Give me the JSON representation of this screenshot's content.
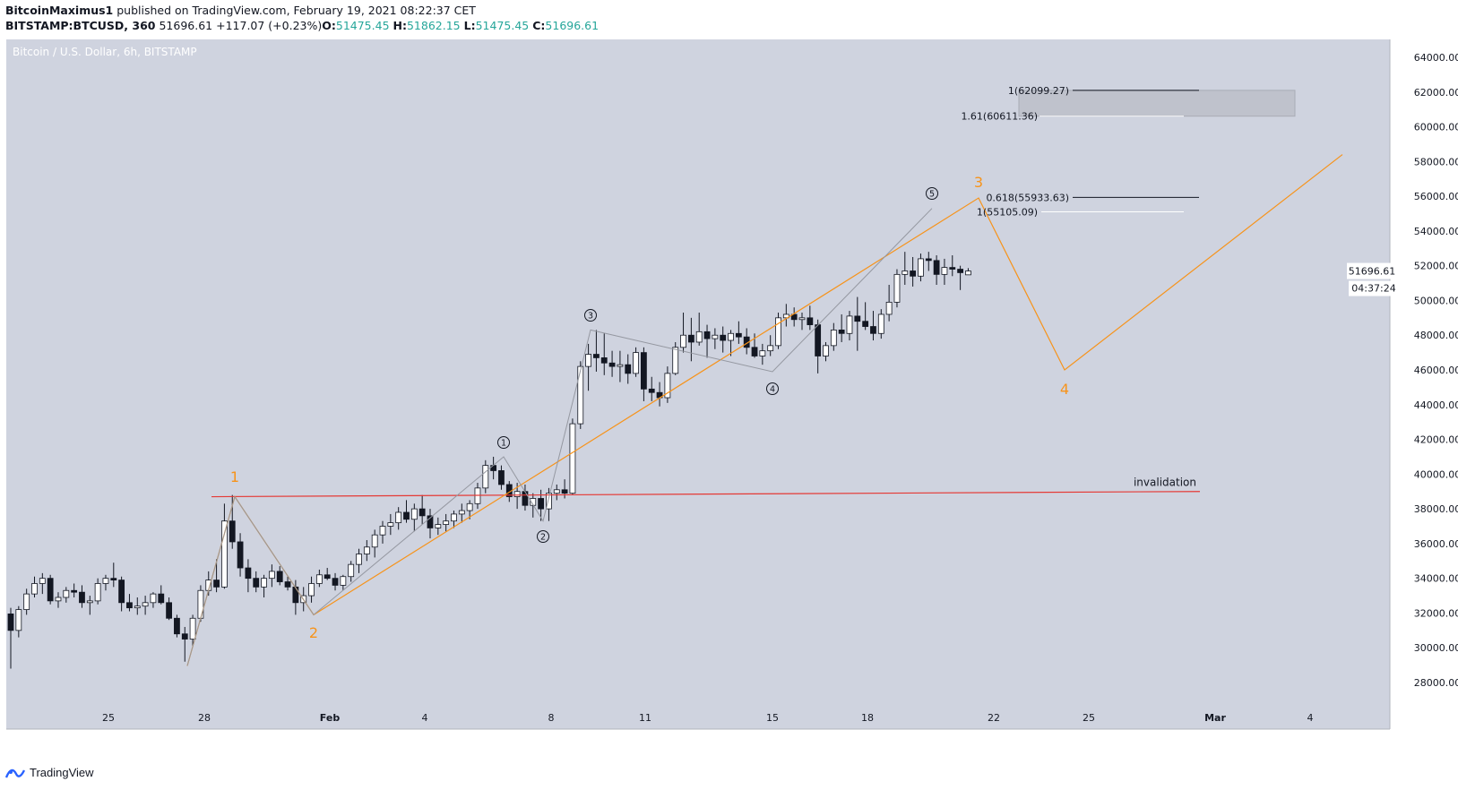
{
  "header": {
    "author": "BitcoinMaximus1",
    "published_text": " published on TradingView.com, February 19, 2021 08:22:37 CET",
    "symbol": "BITSTAMP:BTCUSD, 360",
    "last": "51696.61",
    "change": "+117.07 (+0.23%)",
    "o_label": "O:",
    "o": "51475.45",
    "h_label": "H:",
    "h": "51862.15",
    "l_label": "L:",
    "l": "51475.45",
    "c_label": "C:",
    "c": "51696.61"
  },
  "chart_title": "Bitcoin / U.S. Dollar, 6h, BITSTAMP",
  "footer": {
    "brand": "TradingView"
  },
  "colors": {
    "background": "#cfd3df",
    "bull_candle": "#ffffff",
    "bear_candle": "#131722",
    "wave_orange": "#f7931a",
    "wave_gray": "#9598a1",
    "invalidation_red": "#e53935",
    "text_dark": "#131722"
  },
  "chart_data": {
    "type": "candlestick",
    "title": "Bitcoin / U.S. Dollar, 6h, BITSTAMP",
    "currency_label": "USD",
    "y_ticks": [
      "64000.00",
      "62000.00",
      "60000.00",
      "58000.00",
      "56000.00",
      "54000.00",
      "52000.00",
      "50000.00",
      "48000.00",
      "46000.00",
      "44000.00",
      "42000.00",
      "40000.00",
      "38000.00",
      "36000.00",
      "34000.00",
      "32000.00",
      "30000.00",
      "28000.00"
    ],
    "x_ticks": [
      "25",
      "28",
      "Feb",
      "4",
      "8",
      "11",
      "15",
      "18",
      "22",
      "25",
      "Mar",
      "4"
    ],
    "last_price_label": "51696.61",
    "countdown_label": "04:37:24",
    "candles_ohlc": [
      [
        31950,
        32300,
        28800,
        31000
      ],
      [
        31000,
        32400,
        30600,
        32200
      ],
      [
        32200,
        33400,
        31900,
        33100
      ],
      [
        33100,
        34100,
        32900,
        33700
      ],
      [
        33700,
        34300,
        33100,
        34000
      ],
      [
        34000,
        34200,
        32500,
        32700
      ],
      [
        32700,
        33200,
        32300,
        32900
      ],
      [
        32900,
        33500,
        32600,
        33300
      ],
      [
        33300,
        33700,
        32900,
        33200
      ],
      [
        33200,
        33600,
        32300,
        32600
      ],
      [
        32600,
        33000,
        31900,
        32700
      ],
      [
        32700,
        34000,
        32500,
        33700
      ],
      [
        33700,
        34200,
        33300,
        34000
      ],
      [
        34000,
        34900,
        33500,
        33900
      ],
      [
        33900,
        34100,
        32100,
        32600
      ],
      [
        32600,
        33100,
        32100,
        32300
      ],
      [
        32300,
        32900,
        31900,
        32400
      ],
      [
        32400,
        33000,
        31900,
        32600
      ],
      [
        32600,
        33200,
        32300,
        33100
      ],
      [
        33100,
        33600,
        32500,
        32600
      ],
      [
        32600,
        32900,
        31600,
        31700
      ],
      [
        31700,
        31900,
        30600,
        30800
      ],
      [
        30800,
        31200,
        29200,
        30500
      ],
      [
        30500,
        31900,
        30100,
        31700
      ],
      [
        31700,
        33600,
        31500,
        33300
      ],
      [
        33300,
        34400,
        33000,
        33900
      ],
      [
        33900,
        35100,
        33200,
        33500
      ],
      [
        33500,
        38300,
        33400,
        37300
      ],
      [
        37300,
        38800,
        35700,
        36100
      ],
      [
        36100,
        36600,
        34100,
        34600
      ],
      [
        34600,
        35100,
        33200,
        34000
      ],
      [
        34000,
        34400,
        33200,
        33500
      ],
      [
        33500,
        34200,
        32900,
        34000
      ],
      [
        34000,
        34800,
        33500,
        34400
      ],
      [
        34400,
        34700,
        33600,
        33800
      ],
      [
        33800,
        34100,
        33300,
        33500
      ],
      [
        33500,
        33900,
        31900,
        32600
      ],
      [
        32600,
        33500,
        32100,
        33000
      ],
      [
        33000,
        34100,
        32600,
        33700
      ],
      [
        33700,
        34500,
        33500,
        34200
      ],
      [
        34200,
        34600,
        33900,
        34000
      ],
      [
        34000,
        34300,
        33300,
        33600
      ],
      [
        33600,
        34200,
        33300,
        34100
      ],
      [
        34100,
        35000,
        33800,
        34800
      ],
      [
        34800,
        35700,
        34300,
        35400
      ],
      [
        35400,
        36200,
        35000,
        35800
      ],
      [
        35800,
        36800,
        35200,
        36500
      ],
      [
        36500,
        37300,
        36000,
        37000
      ],
      [
        37000,
        37700,
        36500,
        37200
      ],
      [
        37200,
        38100,
        36800,
        37800
      ],
      [
        37800,
        38500,
        37200,
        37400
      ],
      [
        37400,
        38300,
        36700,
        38000
      ],
      [
        38000,
        38800,
        37100,
        37600
      ],
      [
        37600,
        38000,
        36300,
        36900
      ],
      [
        36900,
        37500,
        36500,
        37100
      ],
      [
        37100,
        37700,
        36700,
        37300
      ],
      [
        37300,
        37900,
        36900,
        37700
      ],
      [
        37700,
        38300,
        37200,
        37900
      ],
      [
        37900,
        38500,
        37400,
        38300
      ],
      [
        38300,
        39500,
        38000,
        39200
      ],
      [
        39200,
        40800,
        38900,
        40500
      ],
      [
        40500,
        41000,
        39700,
        40200
      ],
      [
        40200,
        40500,
        39100,
        39400
      ],
      [
        39400,
        39600,
        38400,
        38700
      ],
      [
        38700,
        39500,
        38000,
        39000
      ],
      [
        39000,
        39400,
        37900,
        38200
      ],
      [
        38200,
        38900,
        37500,
        38600
      ],
      [
        38600,
        39100,
        37300,
        38000
      ],
      [
        38000,
        39200,
        37300,
        38900
      ],
      [
        38900,
        39400,
        38500,
        39100
      ],
      [
        39100,
        39700,
        38600,
        38900
      ],
      [
        38900,
        43200,
        38800,
        42900
      ],
      [
        42900,
        46500,
        42600,
        46200
      ],
      [
        46200,
        47500,
        44800,
        46900
      ],
      [
        46900,
        48300,
        45900,
        46700
      ],
      [
        46700,
        48100,
        45700,
        46400
      ],
      [
        46400,
        47100,
        45600,
        46200
      ],
      [
        46200,
        47100,
        45300,
        46300
      ],
      [
        46300,
        46900,
        45200,
        45800
      ],
      [
        45800,
        47300,
        45600,
        47000
      ],
      [
        47000,
        47300,
        44200,
        44900
      ],
      [
        44900,
        45600,
        44200,
        44700
      ],
      [
        44700,
        45300,
        43900,
        44400
      ],
      [
        44400,
        46200,
        44100,
        45800
      ],
      [
        45800,
        47600,
        45700,
        47300
      ],
      [
        47300,
        49300,
        47000,
        48000
      ],
      [
        48000,
        49000,
        46500,
        47600
      ],
      [
        47600,
        49300,
        47400,
        48200
      ],
      [
        48200,
        48600,
        46700,
        47800
      ],
      [
        47800,
        48400,
        47200,
        48000
      ],
      [
        48000,
        48500,
        47000,
        47700
      ],
      [
        47700,
        48300,
        46800,
        48100
      ],
      [
        48100,
        48800,
        47500,
        47900
      ],
      [
        47900,
        48400,
        46900,
        47300
      ],
      [
        47300,
        48100,
        46700,
        46800
      ],
      [
        46800,
        47500,
        46300,
        47100
      ],
      [
        47100,
        48000,
        46800,
        47400
      ],
      [
        47400,
        49300,
        47200,
        49000
      ],
      [
        49000,
        49800,
        48500,
        49200
      ],
      [
        49200,
        49600,
        48500,
        48900
      ],
      [
        48900,
        49300,
        48300,
        49000
      ],
      [
        49000,
        49700,
        48300,
        48600
      ],
      [
        48600,
        48900,
        45800,
        46800
      ],
      [
        46800,
        47600,
        46500,
        47400
      ],
      [
        47400,
        48700,
        47100,
        48300
      ],
      [
        48300,
        49200,
        47600,
        48100
      ],
      [
        48100,
        49400,
        47700,
        49100
      ],
      [
        49100,
        50200,
        47100,
        48800
      ],
      [
        48800,
        49900,
        48300,
        48500
      ],
      [
        48500,
        49400,
        47700,
        48100
      ],
      [
        48100,
        49500,
        47800,
        49200
      ],
      [
        49200,
        50900,
        48800,
        49900
      ],
      [
        49900,
        51800,
        49600,
        51500
      ],
      [
        51500,
        52800,
        50900,
        51700
      ],
      [
        51700,
        52500,
        50800,
        51400
      ],
      [
        51400,
        52700,
        51100,
        52400
      ],
      [
        52400,
        52800,
        51700,
        52300
      ],
      [
        52300,
        52600,
        50900,
        51500
      ],
      [
        51500,
        52400,
        50900,
        51900
      ],
      [
        51900,
        52600,
        51400,
        51800
      ],
      [
        51800,
        52000,
        50600,
        51600
      ],
      [
        51475,
        51862,
        51475,
        51696
      ]
    ],
    "waves": [
      {
        "name": "orange_wave_path",
        "color": "#f7931a",
        "labels": [
          "1",
          "2",
          "3",
          "4"
        ],
        "points": [
          [
            28960,
            null
          ],
          [
            38700,
            null
          ],
          [
            31900,
            null
          ],
          [
            55900,
            null
          ],
          [
            46000,
            null
          ],
          [
            58400,
            null
          ]
        ]
      },
      {
        "name": "gray_subwave_path",
        "color": "#9598a1",
        "labels": [
          "1",
          "2",
          "3",
          "4",
          "5"
        ],
        "points": [
          [
            41000,
            null
          ],
          [
            37300,
            null
          ],
          [
            48300,
            null
          ],
          [
            45900,
            null
          ],
          [
            55300,
            null
          ]
        ]
      }
    ],
    "fib_targets": [
      {
        "label": "1(62099.27)",
        "value": 62099.27,
        "color": "#131722"
      },
      {
        "label": "1.61(60611.36)",
        "value": 60611.36,
        "color": "#ffffff"
      },
      {
        "label": "0.618(55933.63)",
        "value": 55933.63,
        "color": "#131722"
      },
      {
        "label": "1(55105.09)",
        "value": 55105.09,
        "color": "#ffffff"
      }
    ],
    "target_zone": {
      "top": 62099.27,
      "bottom": 60611.36
    },
    "invalidation": {
      "label": "invalidation",
      "start": 38700,
      "end": 39000,
      "color": "#e53935"
    },
    "ylim": [
      26500,
      66000
    ]
  }
}
